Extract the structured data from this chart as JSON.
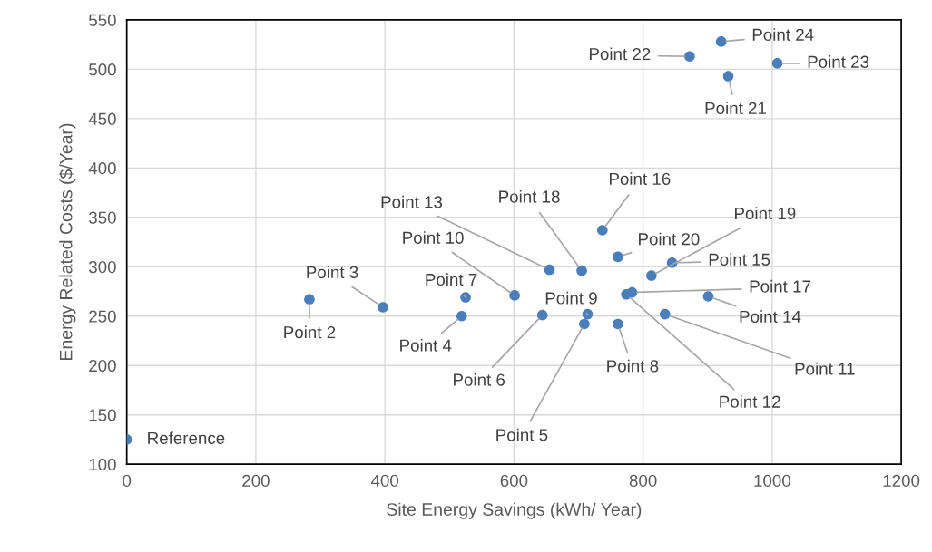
{
  "chart_data": {
    "type": "scatter",
    "xlabel": "Site Energy Savings (kWh/ Year)",
    "ylabel": "Energy Related Costs ($/Year)",
    "x": [
      0,
      283,
      397,
      519,
      525,
      601,
      644,
      655,
      705,
      709,
      714,
      737,
      761,
      761,
      774,
      783,
      813,
      845,
      834,
      901,
      872,
      921,
      932,
      1008
    ],
    "values": [
      125,
      267,
      259,
      250,
      269,
      271,
      251,
      297,
      296,
      242,
      252,
      337,
      310,
      242,
      272,
      274,
      291,
      304,
      252,
      270,
      513,
      528,
      493,
      506
    ],
    "color": "#4a7ebb",
    "marker": "circle",
    "grid": true,
    "xlim": [
      0,
      1200
    ],
    "xticks": [
      0,
      200,
      400,
      600,
      800,
      1000,
      1200
    ],
    "ylim": [
      100,
      550
    ],
    "yticks": [
      100,
      150,
      200,
      250,
      300,
      350,
      400,
      450,
      500,
      550
    ],
    "annotations": [
      {
        "text": "Reference",
        "x": 0,
        "y": 125
      },
      {
        "text": "Point 2",
        "x": 283,
        "y": 267
      },
      {
        "text": "Point 3",
        "x": 397,
        "y": 259
      },
      {
        "text": "Point 4",
        "x": 519,
        "y": 250
      },
      {
        "text": "Point 7",
        "x": 525,
        "y": 269
      },
      {
        "text": "Point 10",
        "x": 601,
        "y": 271
      },
      {
        "text": "Point 6",
        "x": 644,
        "y": 251
      },
      {
        "text": "Point 13",
        "x": 655,
        "y": 297
      },
      {
        "text": "Point 18",
        "x": 705,
        "y": 296
      },
      {
        "text": "Point 5",
        "x": 709,
        "y": 242
      },
      {
        "text": "Point 9",
        "x": 714,
        "y": 252
      },
      {
        "text": "Point 16",
        "x": 737,
        "y": 337
      },
      {
        "text": "Point 20",
        "x": 761,
        "y": 310
      },
      {
        "text": "Point 8",
        "x": 761,
        "y": 242
      },
      {
        "text": "Point 12",
        "x": 774,
        "y": 272
      },
      {
        "text": "Point 17",
        "x": 783,
        "y": 274
      },
      {
        "text": "Point 19",
        "x": 813,
        "y": 291
      },
      {
        "text": "Point 15",
        "x": 845,
        "y": 304
      },
      {
        "text": "Point 11",
        "x": 834,
        "y": 252
      },
      {
        "text": "Point 14",
        "x": 901,
        "y": 270
      },
      {
        "text": "Point 22",
        "x": 872,
        "y": 513
      },
      {
        "text": "Point 24",
        "x": 921,
        "y": 528
      },
      {
        "text": "Point 21",
        "x": 932,
        "y": 493
      },
      {
        "text": "Point 23",
        "x": 1008,
        "y": 506
      }
    ]
  }
}
